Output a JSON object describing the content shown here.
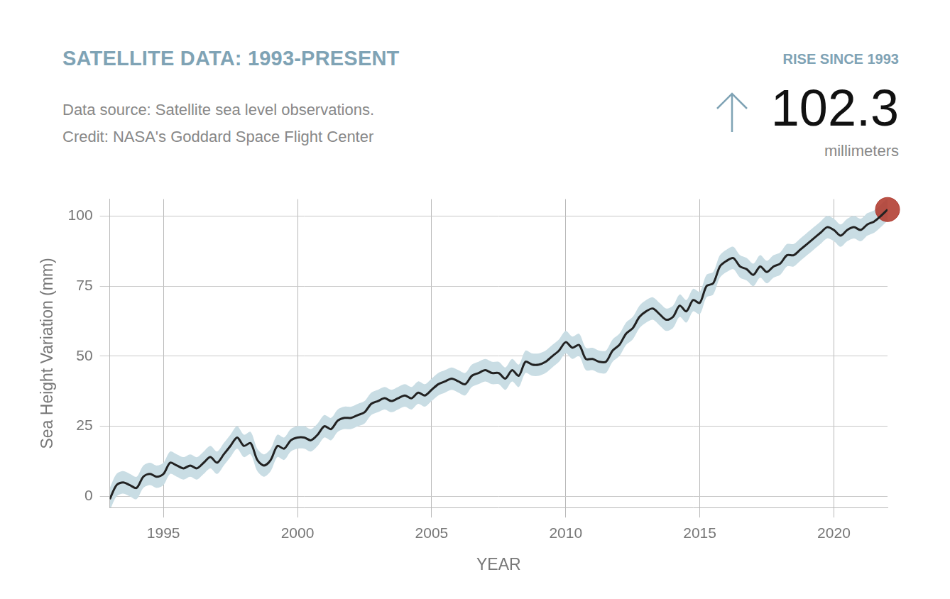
{
  "chart_data": {
    "type": "line",
    "title": "SATELLITE DATA: 1993-PRESENT",
    "subtitle": [
      "Data source: Satellite sea level observations.",
      "Credit: NASA's Goddard Space Flight Center"
    ],
    "annotation": {
      "label": "RISE SINCE 1993",
      "value": 102.3,
      "unit": "millimeters",
      "color": "#b03a2e"
    },
    "x_label": "YEAR",
    "y_label": "Sea Height Variation (mm)",
    "x": [
      1993.0,
      1993.25,
      1993.5,
      1993.75,
      1994.0,
      1994.25,
      1994.5,
      1994.75,
      1995.0,
      1995.25,
      1995.5,
      1995.75,
      1996.0,
      1996.25,
      1996.5,
      1996.75,
      1997.0,
      1997.25,
      1997.5,
      1997.75,
      1998.0,
      1998.25,
      1998.5,
      1998.75,
      1999.0,
      1999.25,
      1999.5,
      1999.75,
      2000.0,
      2000.25,
      2000.5,
      2000.75,
      2001.0,
      2001.25,
      2001.5,
      2001.75,
      2002.0,
      2002.25,
      2002.5,
      2002.75,
      2003.0,
      2003.25,
      2003.5,
      2003.75,
      2004.0,
      2004.25,
      2004.5,
      2004.75,
      2005.0,
      2005.25,
      2005.5,
      2005.75,
      2006.0,
      2006.25,
      2006.5,
      2006.75,
      2007.0,
      2007.25,
      2007.5,
      2007.75,
      2008.0,
      2008.25,
      2008.5,
      2008.75,
      2009.0,
      2009.25,
      2009.5,
      2009.75,
      2010.0,
      2010.25,
      2010.5,
      2010.75,
      2011.0,
      2011.25,
      2011.5,
      2011.75,
      2012.0,
      2012.25,
      2012.5,
      2012.75,
      2013.0,
      2013.25,
      2013.5,
      2013.75,
      2014.0,
      2014.25,
      2014.5,
      2014.75,
      2015.0,
      2015.25,
      2015.5,
      2015.75,
      2016.0,
      2016.25,
      2016.5,
      2016.75,
      2017.0,
      2017.25,
      2017.5,
      2017.75,
      2018.0,
      2018.25,
      2018.5,
      2018.75,
      2019.0,
      2019.25,
      2019.5,
      2019.75,
      2020.0,
      2020.25,
      2020.5,
      2020.75,
      2021.0,
      2021.25,
      2021.5,
      2021.75,
      2022.0
    ],
    "values": [
      -1,
      4,
      5,
      4,
      3,
      7,
      8,
      7,
      8,
      12,
      11,
      10,
      11,
      10,
      12,
      14,
      12,
      15,
      18,
      21,
      18,
      19,
      13,
      11,
      13,
      18,
      17,
      20,
      21,
      21,
      20,
      22,
      25,
      24,
      27,
      28,
      28,
      29,
      30,
      33,
      34,
      35,
      34,
      35,
      36,
      35,
      37,
      36,
      38,
      40,
      41,
      42,
      41,
      40,
      43,
      44,
      45,
      44,
      44,
      42,
      45,
      43,
      48,
      47,
      47,
      48,
      50,
      52,
      55,
      53,
      54,
      49,
      49,
      48,
      48,
      52,
      54,
      58,
      60,
      64,
      66,
      67,
      65,
      63,
      64,
      68,
      66,
      70,
      69,
      75,
      76,
      82,
      84,
      85,
      82,
      81,
      79,
      82,
      80,
      82,
      83,
      86,
      86,
      88,
      90,
      92,
      94,
      96,
      95,
      93,
      95,
      96,
      95,
      97,
      98,
      100,
      102.3
    ],
    "uncertainty": 4,
    "color": "#222222",
    "band_color": "#c9dde4",
    "xlim": [
      1993,
      2022
    ],
    "xticks": [
      1995,
      2000,
      2005,
      2010,
      2015,
      2020
    ],
    "ylim": [
      -4,
      106
    ],
    "yticks": [
      0,
      25,
      50,
      75,
      100
    ],
    "grid": true
  }
}
